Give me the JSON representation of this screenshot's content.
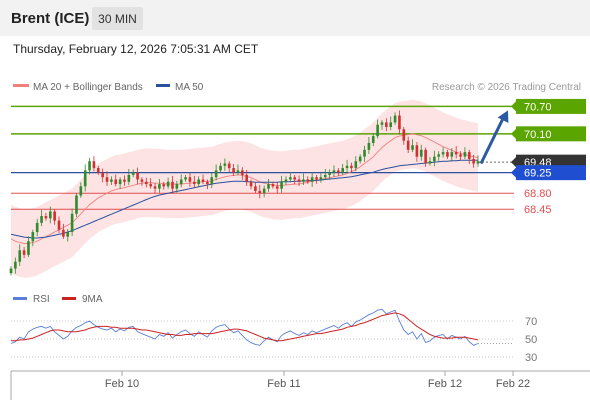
{
  "header": {
    "instrument": "Brent (ICE)",
    "timeframe": "30 MIN",
    "datetime": "Thursday, February 12, 2026 7:05:31 AM CET",
    "credit": "Research © 2026 Trading Central"
  },
  "colors": {
    "resistance": "#5aa500",
    "support": "#e05050",
    "bollinger_fill": "#fde3e3",
    "ma20": "#f08080",
    "ma50": "#2c4f9e",
    "candle_up": "#2e8b2e",
    "candle_down": "#d03030",
    "rsi": "#5b7fd6",
    "rsi_ma": "#cc2222",
    "current_price_bg": "#333333",
    "arrow": "#2c5aa0"
  },
  "chart_data": [
    {
      "type": "candlestick",
      "legend": [
        {
          "name": "MA 20 + Bollinger Bands",
          "color": "#f08080"
        },
        {
          "name": "MA 50",
          "color": "#2c4f9e"
        }
      ],
      "legend_placement": "top-left",
      "ylim": [
        66.9,
        70.95
      ],
      "x_axis": {
        "ticks": [
          "Feb 10",
          "Feb 11",
          "Feb 12",
          "Feb 22"
        ]
      },
      "levels": [
        {
          "price": 70.7,
          "label": "70.70",
          "kind": "resistance"
        },
        {
          "price": 70.1,
          "label": "70.10",
          "kind": "resistance"
        },
        {
          "price": 69.48,
          "label": "69.48",
          "kind": "current"
        },
        {
          "price": 69.25,
          "label": "69.25",
          "kind": "pivot"
        },
        {
          "price": 68.8,
          "label": "68.80",
          "kind": "support"
        },
        {
          "price": 68.45,
          "label": "68.45",
          "kind": "support"
        }
      ],
      "projection": {
        "from": 69.45,
        "to": 70.7,
        "direction": "up"
      },
      "close": [
        67.15,
        67.3,
        67.55,
        67.45,
        67.75,
        67.95,
        68.15,
        68.3,
        68.25,
        68.4,
        68.2,
        68.0,
        67.85,
        67.95,
        68.35,
        68.75,
        68.95,
        69.3,
        69.5,
        69.35,
        69.25,
        69.15,
        69.05,
        69.1,
        69.0,
        69.1,
        69.05,
        69.2,
        69.25,
        69.1,
        69.05,
        69.0,
        68.95,
        68.9,
        69.0,
        68.95,
        69.05,
        68.9,
        69.0,
        69.1,
        69.15,
        69.05,
        69.0,
        69.1,
        69.05,
        69.0,
        69.15,
        69.3,
        69.4,
        69.45,
        69.35,
        69.25,
        69.3,
        69.2,
        69.05,
        68.95,
        68.85,
        68.8,
        68.9,
        69.0,
        68.95,
        68.9,
        69.05,
        69.1,
        69.15,
        69.1,
        69.05,
        69.1,
        69.05,
        69.15,
        69.1,
        69.15,
        69.2,
        69.25,
        69.3,
        69.25,
        69.35,
        69.4,
        69.35,
        69.5,
        69.6,
        69.75,
        69.9,
        70.05,
        70.3,
        70.35,
        70.25,
        70.35,
        70.5,
        70.2,
        69.95,
        69.75,
        69.85,
        69.6,
        69.75,
        69.45,
        69.5,
        69.6,
        69.65,
        69.7,
        69.6,
        69.7,
        69.65,
        69.6,
        69.7,
        69.55,
        69.45,
        69.5
      ],
      "ma20": [
        67.8,
        67.75,
        67.72,
        67.7,
        67.7,
        67.72,
        67.75,
        67.8,
        67.85,
        67.9,
        67.95,
        68.0,
        68.05,
        68.1,
        68.15,
        68.25,
        68.35,
        68.45,
        68.55,
        68.62,
        68.7,
        68.75,
        68.8,
        68.85,
        68.88,
        68.9,
        68.92,
        68.95,
        68.97,
        69.0,
        69.02,
        69.03,
        69.03,
        69.02,
        69.02,
        69.01,
        69.0,
        69.0,
        69.0,
        69.0,
        69.01,
        69.02,
        69.03,
        69.04,
        69.05,
        69.06,
        69.07,
        69.1,
        69.13,
        69.16,
        69.18,
        69.19,
        69.2,
        69.19,
        69.17,
        69.14,
        69.1,
        69.05,
        69.02,
        69.0,
        68.98,
        68.97,
        68.97,
        68.98,
        68.99,
        69.0,
        69.0,
        69.02,
        69.04,
        69.06,
        69.08,
        69.1,
        69.12,
        69.14,
        69.16,
        69.18,
        69.2,
        69.23,
        69.27,
        69.32,
        69.38,
        69.45,
        69.52,
        69.6,
        69.7,
        69.8,
        69.88,
        69.95,
        70.02,
        70.05,
        70.07,
        70.08,
        70.1,
        70.08,
        70.06,
        70.02,
        69.97,
        69.92,
        69.87,
        69.82,
        69.78,
        69.74,
        69.7,
        69.67,
        69.65,
        69.62,
        69.6,
        69.58
      ],
      "ma50": [
        67.9,
        67.88,
        67.86,
        67.84,
        67.83,
        67.82,
        67.82,
        67.83,
        67.84,
        67.86,
        67.88,
        67.9,
        67.92,
        67.95,
        67.98,
        68.02,
        68.06,
        68.1,
        68.14,
        68.18,
        68.22,
        68.26,
        68.3,
        68.34,
        68.38,
        68.42,
        68.46,
        68.5,
        68.54,
        68.58,
        68.62,
        68.66,
        68.7,
        68.73,
        68.76,
        68.78,
        68.8,
        68.82,
        68.84,
        68.86,
        68.88,
        68.9,
        68.92,
        68.94,
        68.96,
        68.98,
        69.0,
        69.02,
        69.03,
        69.04,
        69.05,
        69.06,
        69.06,
        69.06,
        69.05,
        69.05,
        69.04,
        69.04,
        69.04,
        69.04,
        69.04,
        69.04,
        69.05,
        69.05,
        69.05,
        69.06,
        69.06,
        69.07,
        69.07,
        69.08,
        69.08,
        69.09,
        69.1,
        69.11,
        69.12,
        69.13,
        69.14,
        69.15,
        69.16,
        69.18,
        69.2,
        69.22,
        69.24,
        69.26,
        69.29,
        69.32,
        69.34,
        69.36,
        69.38,
        69.4,
        69.41,
        69.42,
        69.43,
        69.44,
        69.45,
        69.46,
        69.47,
        69.48,
        69.49,
        69.5,
        69.5,
        69.51,
        69.51,
        69.52,
        69.52,
        69.52,
        69.52,
        69.52
      ],
      "bb_width": 0.75
    },
    {
      "type": "line",
      "legend": [
        {
          "name": "RSI",
          "color": "#5b7fd6"
        },
        {
          "name": "9MA",
          "color": "#cc2222"
        }
      ],
      "legend_placement": "top-left",
      "ylim": [
        20,
        80
      ],
      "y_ticks": [
        70,
        50,
        30
      ],
      "rsi": [
        45,
        47,
        52,
        50,
        58,
        61,
        63,
        64,
        62,
        64,
        58,
        54,
        50,
        53,
        59,
        63,
        65,
        68,
        70,
        66,
        63,
        61,
        60,
        62,
        58,
        61,
        59,
        63,
        64,
        58,
        56,
        54,
        52,
        50,
        55,
        53,
        57,
        51,
        55,
        58,
        60,
        56,
        53,
        58,
        55,
        52,
        59,
        63,
        65,
        66,
        61,
        57,
        59,
        54,
        49,
        46,
        44,
        43,
        48,
        52,
        49,
        47,
        54,
        57,
        59,
        56,
        54,
        57,
        55,
        59,
        57,
        59,
        61,
        63,
        65,
        62,
        66,
        68,
        64,
        69,
        71,
        74,
        77,
        79,
        82,
        83,
        78,
        80,
        82,
        70,
        60,
        55,
        58,
        50,
        56,
        46,
        48,
        52,
        54,
        55,
        50,
        54,
        52,
        50,
        53,
        47,
        43,
        45
      ],
      "rsi_ma": [
        48,
        48,
        49,
        49,
        50,
        51,
        53,
        55,
        57,
        59,
        60,
        60,
        59,
        58,
        58,
        58,
        59,
        60,
        62,
        63,
        64,
        64,
        64,
        63,
        63,
        62,
        62,
        62,
        62,
        61,
        60,
        60,
        59,
        58,
        57,
        56,
        55,
        55,
        54,
        54,
        55,
        55,
        56,
        56,
        56,
        56,
        56,
        57,
        58,
        59,
        60,
        61,
        61,
        60,
        59,
        57,
        55,
        53,
        51,
        50,
        49,
        48,
        48,
        49,
        50,
        51,
        52,
        53,
        54,
        55,
        56,
        56,
        57,
        58,
        59,
        60,
        61,
        63,
        64,
        65,
        67,
        68,
        70,
        72,
        74,
        76,
        77,
        78,
        79,
        78,
        76,
        72,
        68,
        64,
        61,
        58,
        55,
        53,
        52,
        51,
        51,
        51,
        52,
        52,
        52,
        51,
        50,
        49
      ]
    }
  ]
}
